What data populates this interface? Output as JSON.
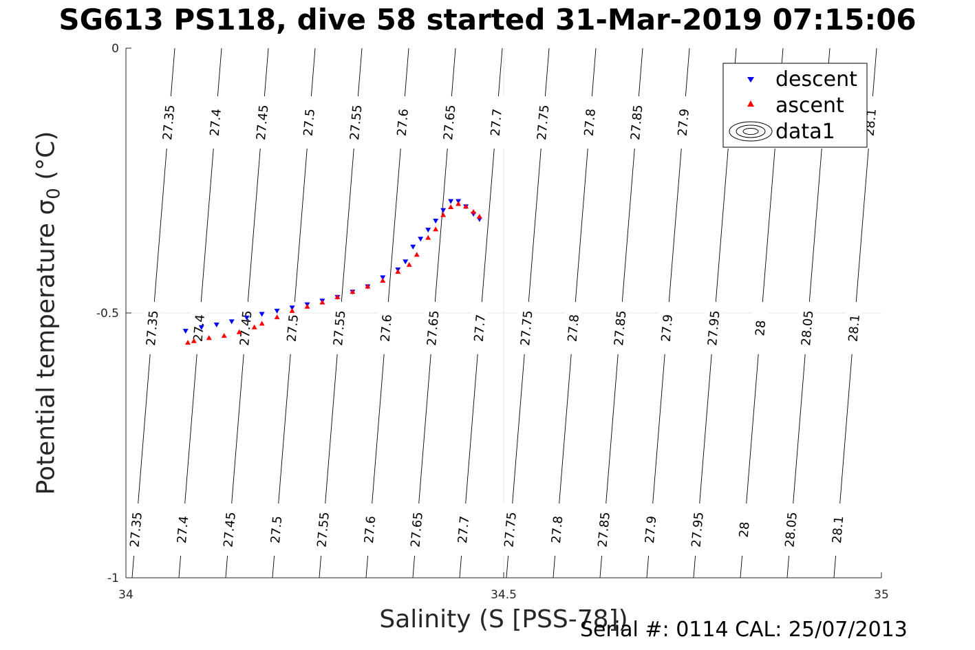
{
  "chart_data": {
    "type": "scatter",
    "title": "SG613 PS118, dive 58 started 31-Mar-2019 07:15:06",
    "xlabel": "Salinity (S [PSS-78])",
    "ylabel_main": "Potential temperature",
    "ylabel_sym": "σ",
    "ylabel_sub": "0",
    "ylabel_unit": "(°C)",
    "xlim": [
      34,
      35
    ],
    "ylim": [
      -1,
      0
    ],
    "xticks": [
      34,
      34.5,
      35
    ],
    "xtick_labels": [
      "34",
      "34.5",
      "35"
    ],
    "yticks": [
      0,
      -0.5,
      -1
    ],
    "ytick_labels": [
      "0",
      "-0.5",
      "-1"
    ],
    "grid": "x and y at 34.5 and -0.5",
    "legend_position": "top-right",
    "contour_levels": [
      "27.35",
      "27.4",
      "27.45",
      "27.5",
      "27.55",
      "27.6",
      "27.65",
      "27.7",
      "27.75",
      "27.8",
      "27.85",
      "27.9",
      "27.95",
      "28",
      "28.05",
      "28.1"
    ],
    "series": [
      {
        "name": "descent",
        "color": "#0000ff",
        "marker": "triangle-down",
        "points": [
          [
            34.079,
            -0.534
          ],
          [
            34.1,
            -0.527
          ],
          [
            34.12,
            -0.522
          ],
          [
            34.14,
            -0.516
          ],
          [
            34.16,
            -0.509
          ],
          [
            34.18,
            -0.502
          ],
          [
            34.2,
            -0.496
          ],
          [
            34.22,
            -0.49
          ],
          [
            34.24,
            -0.484
          ],
          [
            34.26,
            -0.477
          ],
          [
            34.28,
            -0.47
          ],
          [
            34.3,
            -0.46
          ],
          [
            34.32,
            -0.45
          ],
          [
            34.34,
            -0.433
          ],
          [
            34.36,
            -0.418
          ],
          [
            34.37,
            -0.403
          ],
          [
            34.38,
            -0.375
          ],
          [
            34.39,
            -0.36
          ],
          [
            34.4,
            -0.343
          ],
          [
            34.41,
            -0.326
          ],
          [
            34.42,
            -0.306
          ],
          [
            34.43,
            -0.289
          ],
          [
            34.44,
            -0.289
          ],
          [
            34.45,
            -0.299
          ],
          [
            34.46,
            -0.313
          ],
          [
            34.468,
            -0.323
          ]
        ]
      },
      {
        "name": "ascent",
        "color": "#ff0000",
        "marker": "triangle-up",
        "points": [
          [
            34.082,
            -0.556
          ],
          [
            34.09,
            -0.553
          ],
          [
            34.11,
            -0.547
          ],
          [
            34.13,
            -0.543
          ],
          [
            34.15,
            -0.536
          ],
          [
            34.17,
            -0.527
          ],
          [
            34.18,
            -0.52
          ],
          [
            34.2,
            -0.508
          ],
          [
            34.22,
            -0.496
          ],
          [
            34.24,
            -0.488
          ],
          [
            34.26,
            -0.48
          ],
          [
            34.28,
            -0.47
          ],
          [
            34.3,
            -0.46
          ],
          [
            34.32,
            -0.45
          ],
          [
            34.34,
            -0.439
          ],
          [
            34.36,
            -0.422
          ],
          [
            34.375,
            -0.409
          ],
          [
            34.385,
            -0.39
          ],
          [
            34.4,
            -0.358
          ],
          [
            34.41,
            -0.342
          ],
          [
            34.42,
            -0.315
          ],
          [
            34.43,
            -0.3
          ],
          [
            34.44,
            -0.294
          ],
          [
            34.45,
            -0.299
          ],
          [
            34.46,
            -0.309
          ],
          [
            34.468,
            -0.318
          ]
        ]
      }
    ],
    "contour_legend_label": "data1"
  },
  "footer": {
    "serial": "Serial #: 0114  CAL: 25/07/2013"
  }
}
